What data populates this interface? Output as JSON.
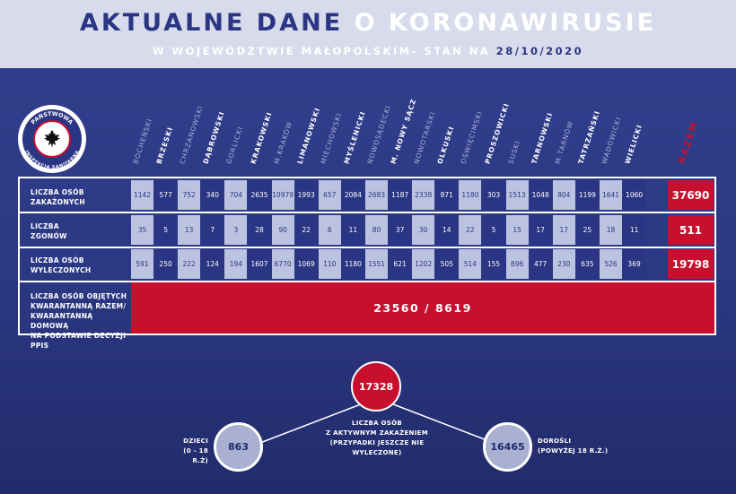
{
  "header": {
    "title_part1": "AKTUALNE DANE",
    "title_part2": "O KORONAWIRUSIE",
    "subtitle_prefix": "W WOJEWÓDZTWIE MAŁOPOLSKIM- STAN NA",
    "subtitle_date": "28/10/2020"
  },
  "logo": {
    "text_top": "PAŃSTWOWA",
    "text_bottom": "INSPEKCJA SANITARNA"
  },
  "columns": [
    "BOCHEŃSKI",
    "BRZESKI",
    "CHRZANOWSKI",
    "DĄBROWSKI",
    "GORLICKI",
    "KRAKOWSKI",
    "M.KRAKÓW",
    "LIMANOWSKI",
    "MIECHOWSKI",
    "MYŚLENICKI",
    "NOWOSĄDECKI",
    "M. NOWY SĄCZ",
    "NOWOTARSKI",
    "OLKUSKI",
    "OŚWIĘCIMSKI",
    "PROSZOWICKI",
    "SUSKI",
    "TARNOWSKI",
    "M.TARNÓW",
    "TATRZAŃSKI",
    "WADOWICKI",
    "WIELICKI"
  ],
  "total_header": "RAZEM",
  "rows": [
    {
      "label_line1": "LICZBA OSÓB",
      "label_line2": "ZAKAŻONYCH",
      "values": [
        "1142",
        "577",
        "752",
        "340",
        "704",
        "2635",
        "10979",
        "1993",
        "657",
        "2084",
        "2683",
        "1187",
        "2338",
        "871",
        "1180",
        "303",
        "1513",
        "1048",
        "804",
        "1199",
        "1641",
        "1060"
      ],
      "total": "37690"
    },
    {
      "label_line1": "LICZBA",
      "label_line2": "ZGONÓW",
      "values": [
        "35",
        "5",
        "13",
        "7",
        "3",
        "28",
        "90",
        "22",
        "6",
        "11",
        "80",
        "37",
        "30",
        "14",
        "22",
        "5",
        "15",
        "17",
        "17",
        "25",
        "18",
        "11"
      ],
      "total": "511"
    },
    {
      "label_line1": "LICZBA OSÓB",
      "label_line2": "WYLECZONYCH",
      "values": [
        "591",
        "250",
        "222",
        "124",
        "194",
        "1607",
        "6770",
        "1069",
        "110",
        "1180",
        "1551",
        "621",
        "1202",
        "505",
        "514",
        "155",
        "896",
        "477",
        "230",
        "635",
        "526",
        "369"
      ],
      "total": "19798"
    }
  ],
  "quarantine": {
    "label_lines": [
      "LICZBA OSÓB OBJĘTYCH",
      "KWARANTANNĄ RAZEM/",
      "KWARANTANNĄ DOMOWĄ",
      "NA PODSTAWIE DECYZJI PPIS"
    ],
    "value": "23560 / 8619"
  },
  "active": {
    "value": "17328",
    "label_lines": [
      "LICZBA OSÓB",
      "Z AKTYWNYM ZAKAŻENIEM",
      "(PRZYPADKI JESZCZE NIE",
      "WYLECZONE)"
    ]
  },
  "children": {
    "value": "863",
    "label_lines": [
      "DZIECI",
      "(0 - 18 R.Ż)"
    ]
  },
  "adults": {
    "value": "16465",
    "label_lines": [
      "DOROŚLI",
      "(POWYŻEJ 18 R.Ż.)"
    ]
  },
  "colors": {
    "navy": "#2a3584",
    "red": "#c8102e",
    "light_cell": "#bcc3e0",
    "banner": "#d8dbeb"
  }
}
